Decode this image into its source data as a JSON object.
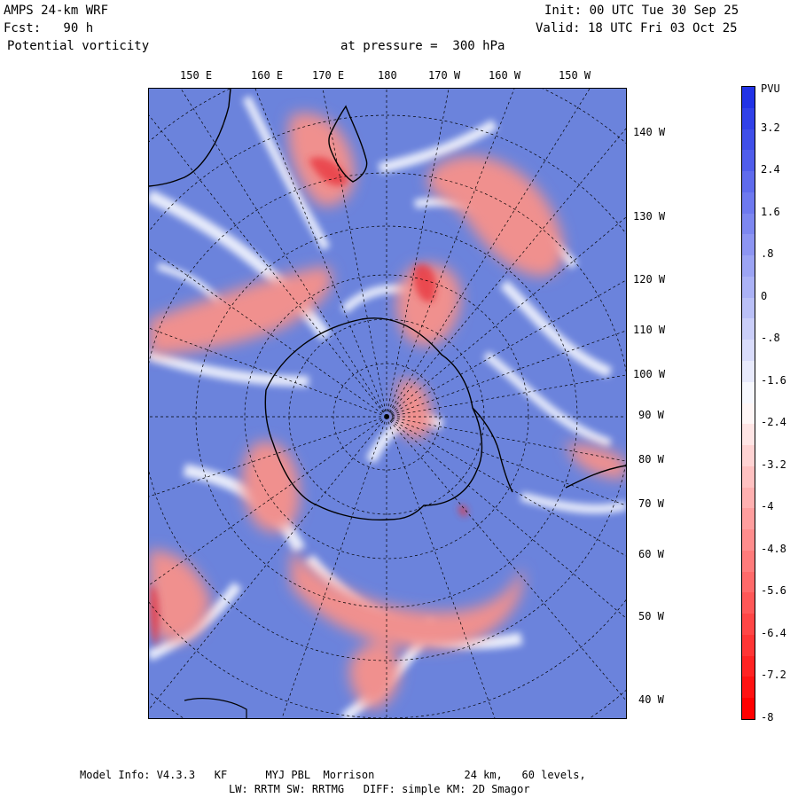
{
  "header": {
    "model": "AMPS 24-km WRF",
    "forecast": "Fcst:   90 h",
    "field": "Potential vorticity",
    "level": "at pressure =  300 hPa",
    "init": "Init: 00 UTC Tue 30 Sep 25",
    "valid": "Valid: 18 UTC Fri 03 Oct 25"
  },
  "lon_top_labels": [
    "150 E",
    "160 E",
    "170 E",
    "180",
    "170 W",
    "160 W",
    "150 W"
  ],
  "lon_right_labels": [
    "140 W",
    "130 W",
    "120 W",
    "110 W",
    "100 W",
    "90 W",
    "80 W",
    "70 W",
    "60 W",
    "50 W",
    "40 W"
  ],
  "colorbar": {
    "unit": "PVU",
    "labels": [
      "3.2",
      "2.4",
      "1.6",
      ".8",
      "0",
      "-.8",
      "-1.6",
      "-2.4",
      "-3.2",
      "-4",
      "-4.8",
      "-5.6",
      "-6.4",
      "-7.2",
      "-8"
    ],
    "min": -8,
    "max": 4,
    "colors": {
      "high": "#2233e6",
      "mid": "#ffffff",
      "low": "#ff0000"
    }
  },
  "footer": {
    "line1": "Model Info: V4.3.3   KF      MYJ PBL  Morrison              24 km,   60 levels,",
    "line2": "LW: RRTM SW: RRTMG   DIFF: simple KM: 2D Smagor"
  }
}
